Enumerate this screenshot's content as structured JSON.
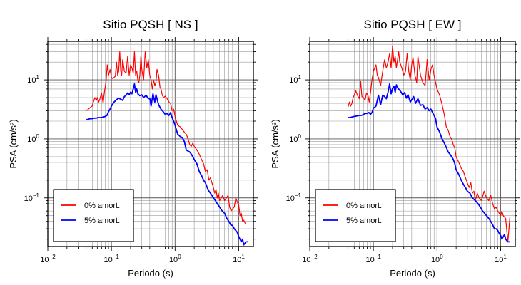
{
  "chart_data": [
    {
      "type": "line",
      "title": "Sitio PQSH [ NS ]",
      "xlabel": "Periodo (s)",
      "ylabel": "PSA (cm/s²)",
      "x_scale": "log",
      "y_scale": "log",
      "xlim": [
        0.01,
        17
      ],
      "ylim": [
        0.015,
        45
      ],
      "x_ticks": [
        {
          "value": 0.01,
          "base": "10",
          "exp": "−2"
        },
        {
          "value": 0.1,
          "base": "10",
          "exp": "−1"
        },
        {
          "value": 1,
          "base": "10",
          "exp": "0"
        },
        {
          "value": 10,
          "base": "10",
          "exp": "1"
        }
      ],
      "y_ticks": [
        {
          "value": 0.1,
          "base": "10",
          "exp": "−1"
        },
        {
          "value": 1,
          "base": "10",
          "exp": "0"
        },
        {
          "value": 10,
          "base": "10",
          "exp": "1"
        }
      ],
      "grid": true,
      "legend_position": "bottom-left",
      "series": [
        {
          "name": "0% amort.",
          "color": "#ff0000",
          "x": [
            0.04,
            0.042,
            0.045,
            0.048,
            0.05,
            0.052,
            0.055,
            0.058,
            0.06,
            0.063,
            0.066,
            0.07,
            0.074,
            0.078,
            0.082,
            0.086,
            0.09,
            0.095,
            0.1,
            0.105,
            0.11,
            0.115,
            0.12,
            0.125,
            0.13,
            0.135,
            0.14,
            0.145,
            0.15,
            0.16,
            0.17,
            0.18,
            0.19,
            0.2,
            0.21,
            0.22,
            0.23,
            0.24,
            0.25,
            0.26,
            0.27,
            0.28,
            0.29,
            0.3,
            0.32,
            0.34,
            0.36,
            0.38,
            0.4,
            0.42,
            0.44,
            0.46,
            0.48,
            0.5,
            0.52,
            0.55,
            0.58,
            0.6,
            0.63,
            0.66,
            0.7,
            0.75,
            0.8,
            0.85,
            0.9,
            0.95,
            1.0,
            1.05,
            1.1,
            1.2,
            1.3,
            1.4,
            1.5,
            1.6,
            1.7,
            1.8,
            1.9,
            2.0,
            2.2,
            2.4,
            2.6,
            2.8,
            3.0,
            3.2,
            3.4,
            3.6,
            3.8,
            4.0,
            4.2,
            4.4,
            4.6,
            4.8,
            5.0,
            5.3,
            5.6,
            6.0,
            6.4,
            6.8,
            7.2,
            7.6,
            8.0,
            8.5,
            9.0,
            9.5,
            10,
            10.5,
            11,
            11.5,
            12,
            12.5,
            13
          ],
          "y": [
            3.0,
            3.1,
            3.3,
            3.5,
            3.6,
            4.2,
            5.0,
            4.5,
            5.0,
            4.2,
            4.8,
            6.0,
            4.0,
            6.5,
            9.0,
            18,
            12,
            15,
            11,
            10.5,
            11,
            11.5,
            20,
            12,
            14,
            30,
            14,
            12,
            22,
            14,
            13,
            25,
            12,
            18,
            16,
            13,
            30,
            12,
            14,
            10,
            9,
            12,
            25,
            15,
            10,
            30,
            16,
            22,
            12,
            10,
            7,
            10,
            8,
            9,
            15,
            12,
            7.5,
            7,
            5.5,
            5.0,
            5.3,
            4.8,
            4.2,
            4.0,
            3.0,
            3.2,
            2.4,
            2.0,
            1.7,
            1.6,
            1.45,
            1.3,
            1.2,
            1.0,
            0.8,
            0.75,
            0.85,
            0.75,
            0.65,
            0.55,
            0.45,
            0.38,
            0.28,
            0.3,
            0.2,
            0.22,
            0.18,
            0.15,
            0.12,
            0.14,
            0.1,
            0.12,
            0.09,
            0.1,
            0.11,
            0.09,
            0.1,
            0.11,
            0.07,
            0.06,
            0.065,
            0.07,
            0.1,
            0.085,
            0.075,
            0.05,
            0.055,
            0.04,
            0.042,
            0.038,
            0.036
          ]
        },
        {
          "name": "5% amort.",
          "color": "#0000ff",
          "x": [
            0.04,
            0.043,
            0.046,
            0.05,
            0.054,
            0.058,
            0.062,
            0.066,
            0.07,
            0.075,
            0.08,
            0.085,
            0.09,
            0.095,
            0.1,
            0.11,
            0.12,
            0.13,
            0.14,
            0.15,
            0.16,
            0.17,
            0.18,
            0.19,
            0.2,
            0.21,
            0.22,
            0.23,
            0.24,
            0.25,
            0.26,
            0.28,
            0.3,
            0.32,
            0.35,
            0.38,
            0.4,
            0.42,
            0.45,
            0.48,
            0.5,
            0.55,
            0.6,
            0.65,
            0.7,
            0.75,
            0.8,
            0.85,
            0.9,
            0.95,
            1.0,
            1.1,
            1.2,
            1.3,
            1.4,
            1.5,
            1.6,
            1.7,
            1.8,
            1.9,
            2.0,
            2.2,
            2.4,
            2.6,
            2.8,
            3.0,
            3.2,
            3.4,
            3.6,
            3.8,
            4.0,
            4.3,
            4.6,
            5.0,
            5.5,
            6.0,
            6.5,
            7.0,
            7.5,
            8.0,
            8.5,
            9.0,
            9.5,
            10,
            10.5,
            11,
            11.5,
            12,
            12.5,
            13,
            14
          ],
          "y": [
            2.1,
            2.15,
            2.2,
            2.2,
            2.25,
            2.25,
            2.3,
            2.3,
            2.3,
            2.35,
            2.4,
            2.5,
            2.9,
            3.2,
            3.6,
            4.2,
            4.6,
            4.9,
            4.7,
            4.5,
            5.2,
            5.5,
            6.0,
            5.6,
            6.2,
            5.8,
            7.0,
            8.5,
            6.2,
            7.0,
            5.8,
            5.4,
            5.6,
            5.0,
            5.5,
            4.8,
            4.9,
            3.6,
            5.8,
            4.2,
            5.6,
            3.8,
            3.2,
            2.9,
            2.6,
            2.7,
            2.5,
            2.8,
            2.3,
            2.0,
            1.7,
            1.2,
            1.1,
            1.05,
            0.9,
            0.65,
            0.62,
            0.6,
            0.55,
            0.5,
            0.45,
            0.38,
            0.28,
            0.24,
            0.2,
            0.18,
            0.15,
            0.13,
            0.12,
            0.11,
            0.1,
            0.09,
            0.08,
            0.07,
            0.06,
            0.055,
            0.045,
            0.04,
            0.035,
            0.034,
            0.03,
            0.028,
            0.026,
            0.022,
            0.02,
            0.018,
            0.02,
            0.016,
            0.017,
            0.018,
            0.018
          ]
        }
      ]
    },
    {
      "type": "line",
      "title": "Sitio PQSH [ EW ]",
      "xlabel": "Periodo (s)",
      "ylabel": "PSA (cm/s²)",
      "x_scale": "log",
      "y_scale": "log",
      "xlim": [
        0.01,
        17
      ],
      "ylim": [
        0.015,
        45
      ],
      "x_ticks": [
        {
          "value": 0.01,
          "base": "10",
          "exp": "−2"
        },
        {
          "value": 0.1,
          "base": "10",
          "exp": "−1"
        },
        {
          "value": 1,
          "base": "10",
          "exp": "0"
        },
        {
          "value": 10,
          "base": "10",
          "exp": "1"
        }
      ],
      "y_ticks": [
        {
          "value": 0.1,
          "base": "10",
          "exp": "−1"
        },
        {
          "value": 1,
          "base": "10",
          "exp": "0"
        },
        {
          "value": 10,
          "base": "10",
          "exp": "1"
        }
      ],
      "grid": true,
      "legend_position": "bottom-left",
      "series": [
        {
          "name": "0% amort.",
          "color": "#ff0000",
          "x": [
            0.04,
            0.042,
            0.044,
            0.046,
            0.048,
            0.05,
            0.053,
            0.056,
            0.06,
            0.063,
            0.066,
            0.07,
            0.074,
            0.078,
            0.082,
            0.086,
            0.09,
            0.095,
            0.1,
            0.105,
            0.11,
            0.115,
            0.12,
            0.13,
            0.14,
            0.15,
            0.16,
            0.17,
            0.18,
            0.19,
            0.2,
            0.21,
            0.22,
            0.23,
            0.24,
            0.25,
            0.26,
            0.28,
            0.3,
            0.32,
            0.34,
            0.36,
            0.38,
            0.4,
            0.42,
            0.45,
            0.48,
            0.5,
            0.55,
            0.6,
            0.65,
            0.7,
            0.75,
            0.8,
            0.85,
            0.9,
            0.95,
            1.0,
            1.1,
            1.2,
            1.3,
            1.4,
            1.5,
            1.6,
            1.7,
            1.8,
            1.9,
            2.0,
            2.2,
            2.4,
            2.6,
            2.8,
            3.0,
            3.2,
            3.4,
            3.6,
            3.8,
            4.0,
            4.3,
            4.6,
            5.0,
            5.5,
            6.0,
            6.5,
            7.0,
            7.5,
            8.0,
            8.5,
            9.0,
            9.5,
            10,
            10.5,
            11,
            12,
            13,
            14
          ],
          "y": [
            3.5,
            4.2,
            3.6,
            4.0,
            5.0,
            5.5,
            6.5,
            5.5,
            4.8,
            9.5,
            5.2,
            5.0,
            4.5,
            6.0,
            5.5,
            4.2,
            6.0,
            10,
            14,
            16,
            18,
            12,
            11,
            8,
            14,
            22,
            16,
            20,
            28,
            16,
            38,
            20,
            25,
            16,
            22,
            30,
            20,
            16,
            12,
            14,
            28,
            14,
            10,
            18,
            24,
            12,
            9,
            25,
            12,
            9,
            8,
            22,
            10,
            15,
            18,
            12,
            9,
            7,
            5.5,
            3.8,
            2.6,
            1.6,
            1.4,
            1.1,
            1.0,
            0.8,
            0.7,
            0.5,
            0.4,
            0.32,
            0.28,
            0.22,
            0.18,
            0.15,
            0.18,
            0.12,
            0.13,
            0.09,
            0.12,
            0.1,
            0.09,
            0.13,
            0.1,
            0.09,
            0.11,
            0.08,
            0.065,
            0.07,
            0.06,
            0.055,
            0.05,
            0.06,
            0.05,
            0.045,
            0.018,
            0.048
          ]
        },
        {
          "name": "5% amort.",
          "color": "#0000ff",
          "x": [
            0.04,
            0.043,
            0.046,
            0.05,
            0.055,
            0.06,
            0.065,
            0.07,
            0.075,
            0.08,
            0.085,
            0.09,
            0.095,
            0.1,
            0.11,
            0.12,
            0.13,
            0.14,
            0.15,
            0.16,
            0.17,
            0.18,
            0.19,
            0.2,
            0.21,
            0.22,
            0.23,
            0.24,
            0.25,
            0.27,
            0.29,
            0.31,
            0.33,
            0.35,
            0.38,
            0.4,
            0.43,
            0.46,
            0.5,
            0.55,
            0.6,
            0.65,
            0.7,
            0.75,
            0.8,
            0.85,
            0.9,
            0.95,
            1.0,
            1.1,
            1.2,
            1.3,
            1.4,
            1.5,
            1.6,
            1.7,
            1.8,
            1.9,
            2.0,
            2.2,
            2.4,
            2.6,
            2.8,
            3.0,
            3.3,
            3.6,
            4.0,
            4.4,
            4.8,
            5.2,
            5.6,
            6.0,
            6.5,
            7.0,
            7.5,
            8.0,
            8.5,
            9.0,
            9.5,
            10,
            10.5,
            11,
            11.5,
            12,
            13,
            14
          ],
          "y": [
            2.3,
            2.3,
            2.35,
            2.4,
            2.45,
            2.5,
            2.5,
            2.6,
            2.7,
            2.7,
            2.8,
            2.6,
            2.8,
            3.3,
            3.6,
            5.5,
            3.8,
            5.5,
            5.2,
            4.8,
            6.2,
            8.5,
            5.8,
            7.2,
            7.8,
            6.2,
            8.2,
            7.5,
            7.0,
            6.3,
            5.5,
            6.1,
            4.9,
            5.6,
            4.2,
            4.6,
            5.2,
            4.0,
            4.8,
            3.7,
            3.8,
            3.2,
            3.4,
            3.0,
            3.2,
            2.8,
            2.5,
            2.2,
            1.6,
            1.3,
            1.0,
            0.85,
            0.72,
            0.6,
            0.55,
            0.5,
            0.45,
            0.38,
            0.3,
            0.25,
            0.2,
            0.17,
            0.15,
            0.13,
            0.12,
            0.1,
            0.09,
            0.08,
            0.07,
            0.06,
            0.055,
            0.05,
            0.045,
            0.04,
            0.035,
            0.03,
            0.03,
            0.028,
            0.025,
            0.023,
            0.02,
            0.022,
            0.024,
            0.02,
            0.018,
            0.018
          ]
        }
      ]
    }
  ]
}
